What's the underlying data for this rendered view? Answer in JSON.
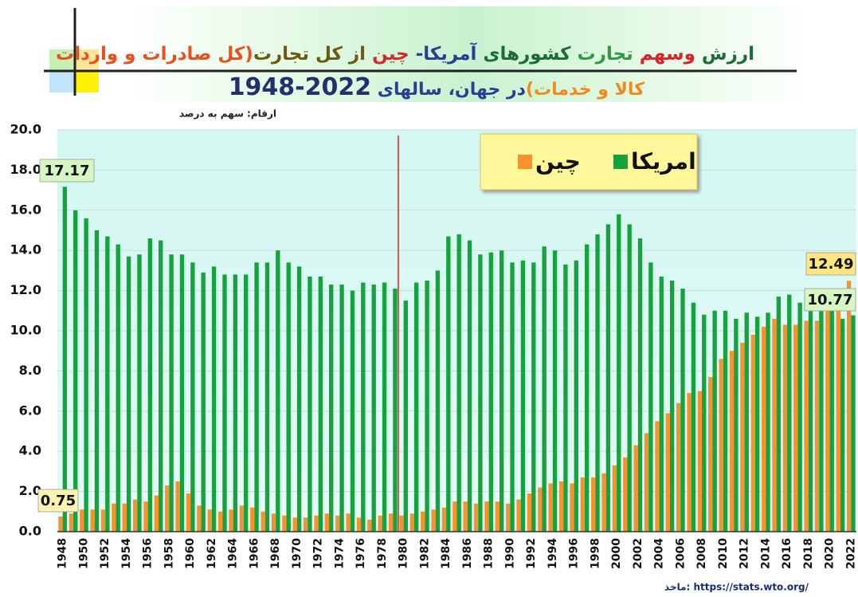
{
  "chart_data": {
    "type": "bar",
    "title_line1": [
      {
        "text": "ارزش ",
        "color": "#1e6b3a"
      },
      {
        "text": "وسهم ",
        "color": "#d6262b"
      },
      {
        "text": "تجارت ",
        "color": "#2f9a45"
      },
      {
        "text": "کشورهای ",
        "color": "#1e6b3a"
      },
      {
        "text": "آمریکا- ",
        "color": "#2d3c94"
      },
      {
        "text": "چین ",
        "color": "#d6262b"
      },
      {
        "text": "از کل تجارت",
        "color": "#6b5a12"
      },
      {
        "text": "(کل صادرات و واردات",
        "color": "#e8501c"
      }
    ],
    "title_line2": [
      {
        "text": "کالا و خدمات)",
        "color": "#f08a1c"
      },
      {
        "text": "در جهان، سالهای ",
        "color": "#2d3c94"
      },
      {
        "text": "1948-2022",
        "color": "#23306e"
      }
    ],
    "y_axis_label": "ارقام: سهم به درصد",
    "source": "ماخذ: https://stats.wto.org/",
    "categories": [
      "1948",
      null,
      "1950",
      null,
      "1952",
      null,
      "1954",
      null,
      "1956",
      null,
      "1958",
      null,
      "1960",
      null,
      "1962",
      null,
      "1964",
      null,
      "1966",
      null,
      "1968",
      null,
      "1970",
      null,
      "1972",
      null,
      "1974",
      null,
      "1976",
      null,
      "1978",
      null,
      "1980",
      null,
      "1982",
      null,
      "1984",
      null,
      "1986",
      null,
      "1988",
      null,
      "1990",
      null,
      "1992",
      null,
      "1994",
      null,
      "1996",
      null,
      "1998",
      null,
      "2000",
      null,
      "2002",
      null,
      "2004",
      null,
      "2006",
      null,
      "2008",
      null,
      "2010",
      null,
      "2012",
      null,
      "2014",
      null,
      "2016",
      null,
      "2018",
      null,
      "2020",
      null,
      "2022"
    ],
    "series": [
      {
        "name": "چین",
        "color": "#f7932f",
        "values": [
          0.75,
          0.9,
          1.1,
          1.1,
          1.1,
          1.4,
          1.4,
          1.6,
          1.5,
          1.8,
          2.3,
          2.5,
          1.9,
          1.3,
          1.1,
          1.0,
          1.1,
          1.3,
          1.2,
          1.0,
          0.9,
          0.8,
          0.7,
          0.7,
          0.8,
          0.9,
          0.8,
          0.9,
          0.7,
          0.6,
          0.8,
          0.9,
          0.8,
          0.9,
          1.0,
          1.1,
          1.2,
          1.5,
          1.5,
          1.4,
          1.5,
          1.5,
          1.4,
          1.6,
          1.9,
          2.2,
          2.4,
          2.5,
          2.4,
          2.7,
          2.7,
          2.9,
          3.3,
          3.7,
          4.3,
          4.9,
          5.5,
          5.9,
          6.4,
          6.9,
          7.0,
          7.7,
          8.6,
          9.0,
          9.4,
          9.8,
          10.2,
          10.6,
          10.3,
          10.3,
          10.5,
          10.5,
          11.2,
          12.0,
          12.49
        ]
      },
      {
        "name": "امریکا",
        "color": "#14a33c",
        "values": [
          17.17,
          16.0,
          15.6,
          15.0,
          14.7,
          14.3,
          13.7,
          13.8,
          14.6,
          14.5,
          13.8,
          13.8,
          13.4,
          12.9,
          13.2,
          12.8,
          12.8,
          12.8,
          13.4,
          13.4,
          14.0,
          13.4,
          13.2,
          12.7,
          12.7,
          12.3,
          12.3,
          12.0,
          12.4,
          12.3,
          12.4,
          12.1,
          11.5,
          12.4,
          12.5,
          13.0,
          14.7,
          14.8,
          14.5,
          13.8,
          13.9,
          14.0,
          13.4,
          13.5,
          13.4,
          14.2,
          14.0,
          13.3,
          13.5,
          14.3,
          14.8,
          15.3,
          15.8,
          15.3,
          14.6,
          13.4,
          12.7,
          12.5,
          12.1,
          11.4,
          10.8,
          11.0,
          11.0,
          10.6,
          10.9,
          10.7,
          10.9,
          11.7,
          11.8,
          11.4,
          11.0,
          11.2,
          11.0,
          10.6,
          10.77
        ]
      }
    ],
    "ylim": [
      0,
      20
    ],
    "yticks": [
      {
        "value": 0,
        "label": "0.0"
      },
      {
        "value": 2,
        "label": "2.0"
      },
      {
        "value": 4,
        "label": "4.0"
      },
      {
        "value": 6,
        "label": "6.0"
      },
      {
        "value": 8,
        "label": "8.0"
      },
      {
        "value": 10,
        "label": "10.0"
      },
      {
        "value": 12,
        "label": "12.0"
      },
      {
        "value": 14,
        "label": "14.0"
      },
      {
        "value": 16,
        "label": "16.0"
      },
      {
        "value": 18,
        "label": "18.0"
      },
      {
        "value": 20,
        "label": "20.0"
      }
    ],
    "grid": true
  }
}
